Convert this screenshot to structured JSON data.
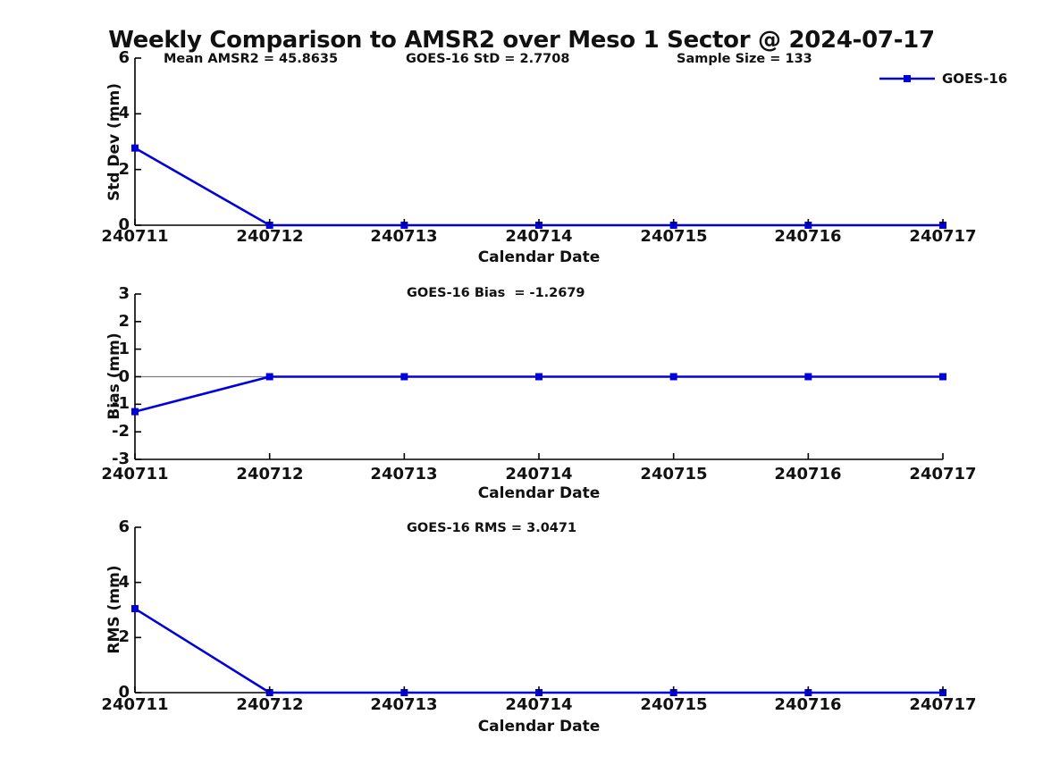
{
  "title": "Weekly Comparison to AMSR2 over Meso 1 Sector @ 2024-07-17",
  "legend": {
    "label": "GOES-16"
  },
  "colors": {
    "series": "#0000DD",
    "axis": "#000000",
    "zero_line": "#808080",
    "text": "#111111",
    "background": "#FFFFFF"
  },
  "chart_data": [
    {
      "type": "line",
      "xlabel": "Calendar Date",
      "ylabel": "Std Dev (mm)",
      "categories": [
        "240711",
        "240712",
        "240713",
        "240714",
        "240715",
        "240716",
        "240717"
      ],
      "series": [
        {
          "name": "GOES-16",
          "marker": "square",
          "values": [
            2.7708,
            0,
            0,
            0,
            0,
            0,
            0
          ]
        }
      ],
      "ylim": [
        0,
        6
      ],
      "yticks": [
        0,
        2,
        4,
        6
      ],
      "grid": false,
      "zero_line": false,
      "legend_position": "top-right",
      "annotations": [
        {
          "text": "Mean AMSR2 = 45.8635"
        },
        {
          "text": "GOES-16 StD = 2.7708"
        },
        {
          "text": "Sample Size = 133"
        }
      ]
    },
    {
      "type": "line",
      "xlabel": "Calendar Date",
      "ylabel": "Bias (mm)",
      "categories": [
        "240711",
        "240712",
        "240713",
        "240714",
        "240715",
        "240716",
        "240717"
      ],
      "series": [
        {
          "name": "GOES-16",
          "marker": "square",
          "values": [
            -1.2679,
            0,
            0,
            0,
            0,
            0,
            0
          ]
        }
      ],
      "ylim": [
        -3,
        3
      ],
      "yticks": [
        -3,
        -2,
        -1,
        0,
        1,
        2,
        3
      ],
      "grid": false,
      "zero_line": true,
      "annotations": [
        {
          "text": "GOES-16 Bias  = -1.2679"
        }
      ]
    },
    {
      "type": "line",
      "xlabel": "Calendar Date",
      "ylabel": "RMS (mm)",
      "categories": [
        "240711",
        "240712",
        "240713",
        "240714",
        "240715",
        "240716",
        "240717"
      ],
      "series": [
        {
          "name": "GOES-16",
          "marker": "square",
          "values": [
            3.0471,
            0,
            0,
            0,
            0,
            0,
            0
          ]
        }
      ],
      "ylim": [
        0,
        6
      ],
      "yticks": [
        0,
        2,
        4,
        6
      ],
      "grid": false,
      "zero_line": false,
      "annotations": [
        {
          "text": "GOES-16 RMS = 3.0471"
        }
      ]
    }
  ]
}
